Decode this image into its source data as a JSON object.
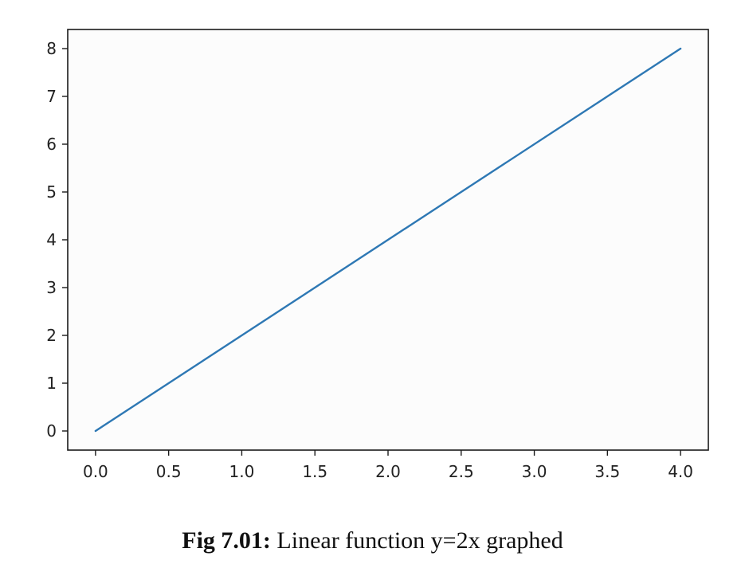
{
  "caption": {
    "label": "Fig 7.01:",
    "text": "Linear function y=2x graphed"
  },
  "chart_data": {
    "type": "line",
    "title": "",
    "xlabel": "",
    "ylabel": "",
    "xlim": [
      -0.19,
      4.19
    ],
    "ylim": [
      -0.4,
      8.4
    ],
    "xticks": [
      0.0,
      0.5,
      1.0,
      1.5,
      2.0,
      2.5,
      3.0,
      3.5,
      4.0
    ],
    "xtick_labels": [
      "0.0",
      "0.5",
      "1.0",
      "1.5",
      "2.0",
      "2.5",
      "3.0",
      "3.5",
      "4.0"
    ],
    "yticks": [
      0,
      1,
      2,
      3,
      4,
      5,
      6,
      7,
      8
    ],
    "ytick_labels": [
      "0",
      "1",
      "2",
      "3",
      "4",
      "5",
      "6",
      "7",
      "8"
    ],
    "grid": false,
    "legend": "none",
    "series": [
      {
        "color": "#2e78b4",
        "x": [
          0,
          4
        ],
        "y": [
          0,
          8
        ]
      }
    ]
  }
}
